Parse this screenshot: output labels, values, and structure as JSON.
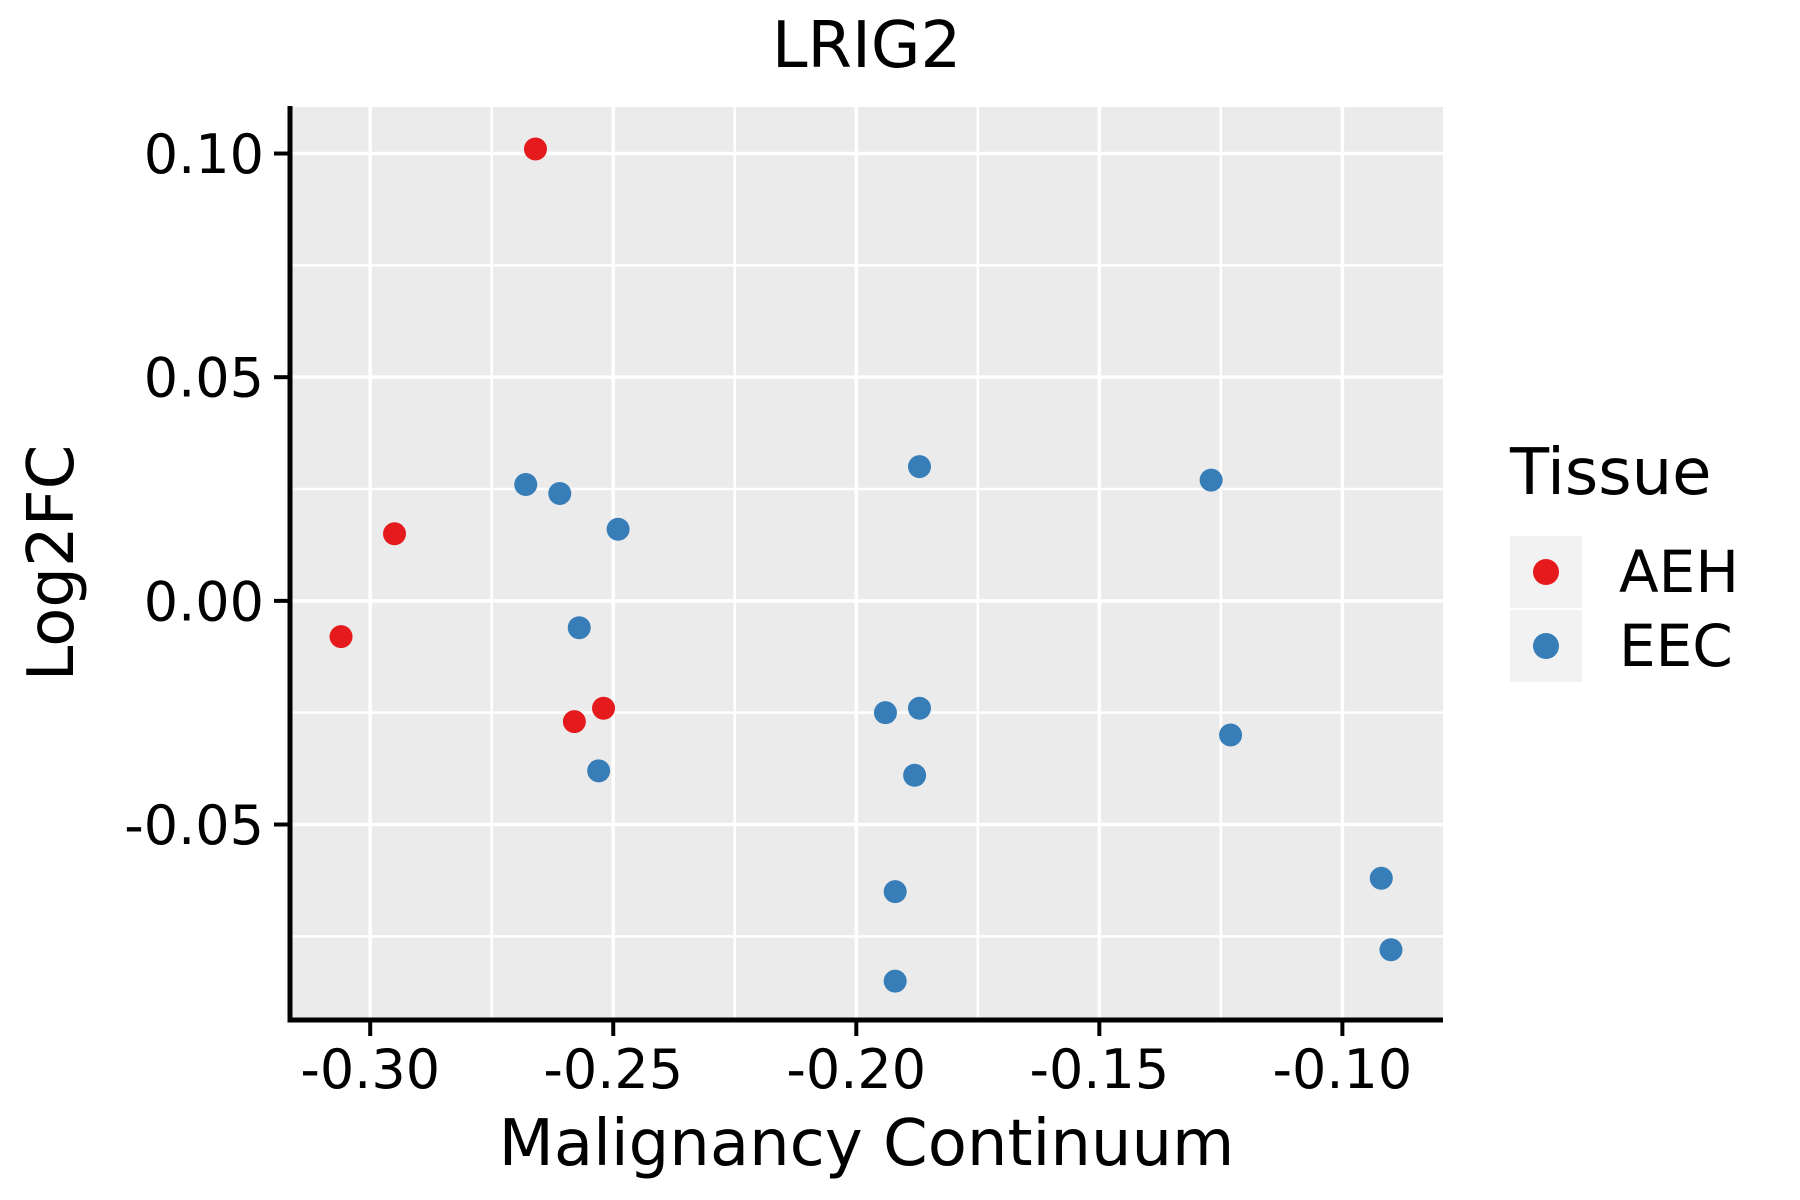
{
  "colors": {
    "background": "#FFFFFF",
    "panel_bg": "#EBEBEB",
    "grid": "#FFFFFF",
    "axis_line": "#000000",
    "text": "#000000",
    "legend_key_bg": "#F2F2F2",
    "aeh": "#E41A1C",
    "eec": "#377EB8"
  },
  "chart_data": {
    "type": "scatter",
    "title": "LRIG2",
    "xlabel": "Malignancy Continuum",
    "ylabel": "Log2FC",
    "grid": true,
    "legend_position": "right",
    "legend_title": "Tissue",
    "xlim": [
      -0.3165,
      -0.0793
    ],
    "ylim": [
      -0.0937,
      0.1104
    ],
    "x_ticks": [
      -0.3,
      -0.25,
      -0.2,
      -0.15,
      -0.1
    ],
    "x_tick_labels": [
      "-0.30",
      "-0.25",
      "-0.20",
      "-0.15",
      "-0.10"
    ],
    "x_minor_ticks": [
      -0.275,
      -0.225,
      -0.175,
      -0.125
    ],
    "y_ticks": [
      0.1,
      0.05,
      0.0,
      -0.05
    ],
    "y_tick_labels": [
      "0.10",
      "0.05",
      "0.00",
      "-0.05"
    ],
    "y_minor_ticks": [
      0.075,
      0.025,
      -0.025,
      -0.075
    ],
    "series": [
      {
        "name": "AEH",
        "color": "#E41A1C",
        "points": [
          [
            -0.266,
            0.101
          ],
          [
            -0.295,
            0.015
          ],
          [
            -0.306,
            -0.008
          ],
          [
            -0.252,
            -0.024
          ],
          [
            -0.258,
            -0.027
          ]
        ]
      },
      {
        "name": "EEC",
        "color": "#377EB8",
        "points": [
          [
            -0.268,
            0.026
          ],
          [
            -0.261,
            0.024
          ],
          [
            -0.249,
            0.016
          ],
          [
            -0.257,
            -0.006
          ],
          [
            -0.253,
            -0.038
          ],
          [
            -0.187,
            0.03
          ],
          [
            -0.194,
            -0.025
          ],
          [
            -0.187,
            -0.024
          ],
          [
            -0.188,
            -0.039
          ],
          [
            -0.192,
            -0.065
          ],
          [
            -0.192,
            -0.085
          ],
          [
            -0.127,
            0.027
          ],
          [
            -0.123,
            -0.03
          ],
          [
            -0.092,
            -0.062
          ],
          [
            -0.09,
            -0.078
          ]
        ]
      }
    ]
  }
}
